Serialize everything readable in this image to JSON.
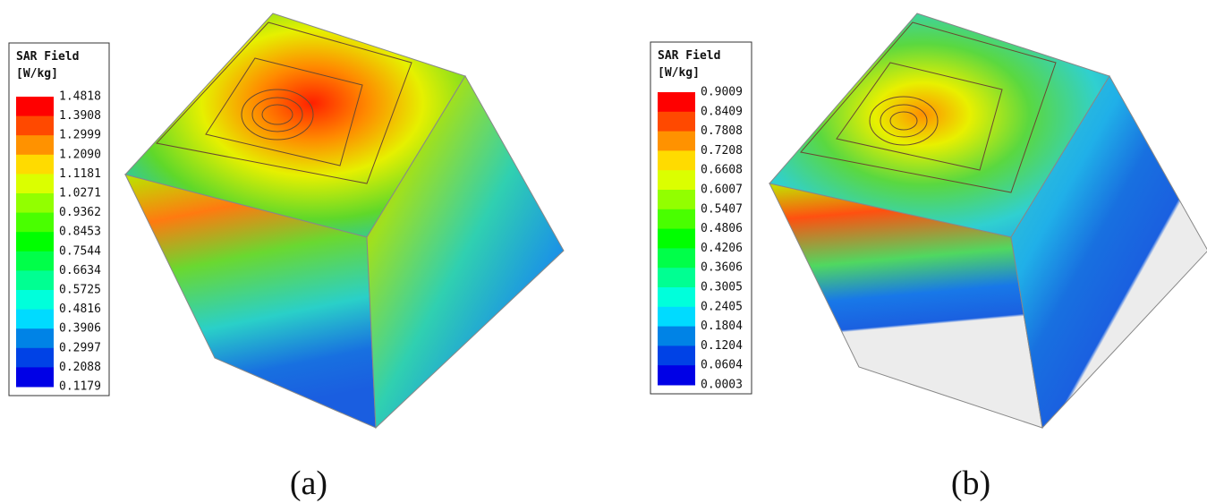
{
  "panels": [
    {
      "legend": {
        "title": "SAR Field",
        "unit": "[W/kg]",
        "labels": [
          "1.4818",
          "1.3908",
          "1.2999",
          "1.2090",
          "1.1181",
          "1.0271",
          "0.9362",
          "0.8453",
          "0.7544",
          "0.6634",
          "0.5725",
          "0.4816",
          "0.3906",
          "0.2997",
          "0.2088",
          "0.1179"
        ]
      },
      "caption": "(a)"
    },
    {
      "legend": {
        "title": "SAR Field",
        "unit": "[W/kg]",
        "labels": [
          "0.9009",
          "0.8409",
          "0.7808",
          "0.7208",
          "0.6608",
          "0.6007",
          "0.5407",
          "0.4806",
          "0.4206",
          "0.3606",
          "0.3005",
          "0.2405",
          "0.1804",
          "0.1204",
          "0.0604",
          "0.0003"
        ]
      },
      "caption": "(b)"
    }
  ]
}
